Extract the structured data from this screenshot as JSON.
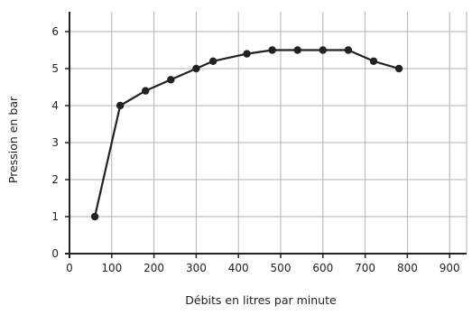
{
  "chart_data": {
    "type": "line",
    "title": "",
    "xlabel": "Débits en litres par minute",
    "ylabel": "Pression en bar",
    "xlim": [
      0,
      940
    ],
    "ylim": [
      0,
      6.5
    ],
    "xticks": [
      0,
      100,
      200,
      300,
      400,
      500,
      600,
      700,
      800,
      900
    ],
    "yticks": [
      0,
      1,
      2,
      3,
      4,
      5,
      6
    ],
    "grid": true,
    "legend": "none",
    "colors": {
      "line": "#222222",
      "grid": "#b3b3b3",
      "axis": "#222222"
    },
    "series": [
      {
        "x": [
          60,
          120,
          180,
          240,
          300,
          340,
          420,
          480,
          540,
          600,
          660,
          720,
          780
        ],
        "y": [
          1,
          4,
          4.4,
          4.7,
          5,
          5.2,
          5.4,
          5.5,
          5.5,
          5.5,
          5.5,
          5.2,
          5
        ]
      }
    ]
  }
}
